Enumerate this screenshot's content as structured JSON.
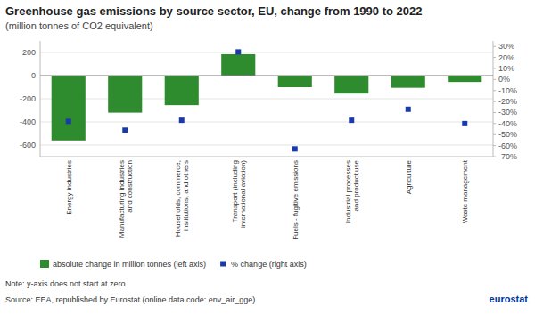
{
  "chart_data": {
    "type": "bar",
    "title": "Greenhouse gas emissions by source sector, EU, change from 1990 to 2022",
    "subtitle": "(million tonnes of CO2 equivalent)",
    "categories": [
      "Energy industries",
      "Manufacturing industries\nand construction",
      "Households, commerce,\ninstitutions, and others",
      "Transport (including\ninternational aviation)",
      "Fuels - fugitive emissions",
      "Industrial processes\nand product use",
      "Agriculture",
      "Waste management"
    ],
    "series": [
      {
        "name": "absolute change in million tonnes (left axis)",
        "type": "bar",
        "color": "#2e8b2e",
        "values": [
          -560,
          -320,
          -255,
          185,
          -100,
          -155,
          -105,
          -55
        ]
      },
      {
        "name": "% change (right axis)",
        "type": "scatter",
        "marker": "square",
        "color": "#1a3aaa",
        "axis": "y2",
        "values": [
          -38,
          -46,
          -37,
          25,
          -63,
          -37,
          -27,
          -40
        ]
      }
    ],
    "ylim": [
      -700,
      300
    ],
    "yticks": [
      -600,
      -400,
      -200,
      0,
      200
    ],
    "y2lim": [
      -70,
      35
    ],
    "y2ticks": [
      {
        "value": -70,
        "label": "-70%"
      },
      {
        "value": -60,
        "label": "-60%"
      },
      {
        "value": -50,
        "label": "-50%"
      },
      {
        "value": -40,
        "label": "-40%"
      },
      {
        "value": -30,
        "label": "-30%"
      },
      {
        "value": -20,
        "label": "-20%"
      },
      {
        "value": -10,
        "label": "-10%"
      },
      {
        "value": 0,
        "label": "0%"
      },
      {
        "value": 10,
        "label": "10%"
      },
      {
        "value": 20,
        "label": "20%"
      },
      {
        "value": 30,
        "label": "30%"
      }
    ],
    "grid": true,
    "legend": "bottom",
    "annotations": [
      "Note: y-axis does not start at zero",
      "Source: EEA, republished by Eurostat (online data code: env_air_gge)",
      "eurostat"
    ]
  }
}
